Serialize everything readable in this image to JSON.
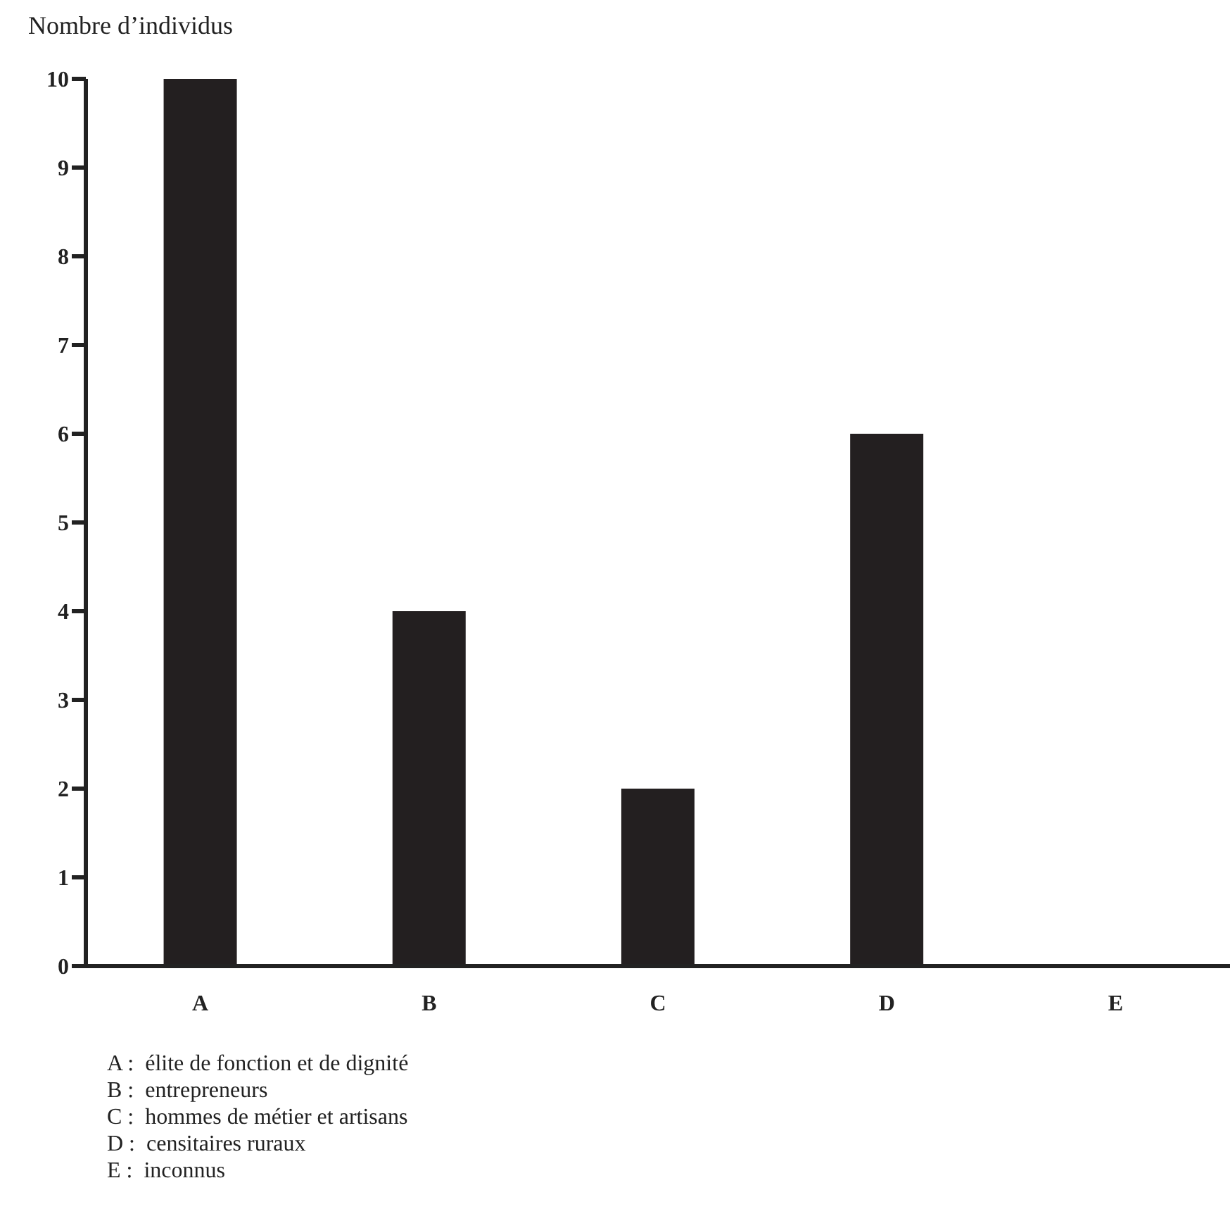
{
  "chart_data": {
    "type": "bar",
    "ylabel": "Nombre d’individus",
    "categories": [
      "A",
      "B",
      "C",
      "D",
      "E"
    ],
    "values": [
      10,
      4,
      2,
      6,
      0
    ],
    "color": "#231f20",
    "ylim": [
      0,
      10
    ],
    "yticks": [
      0,
      1,
      2,
      3,
      4,
      5,
      6,
      7,
      8,
      9,
      10
    ],
    "grid": false,
    "legend": false,
    "annotations": [
      "A :  élite de fonction et de dignité",
      "B :  entrepreneurs",
      "C :  hommes de métier et artisans",
      "D :  censitaires ruraux",
      "E :  inconnus"
    ]
  }
}
